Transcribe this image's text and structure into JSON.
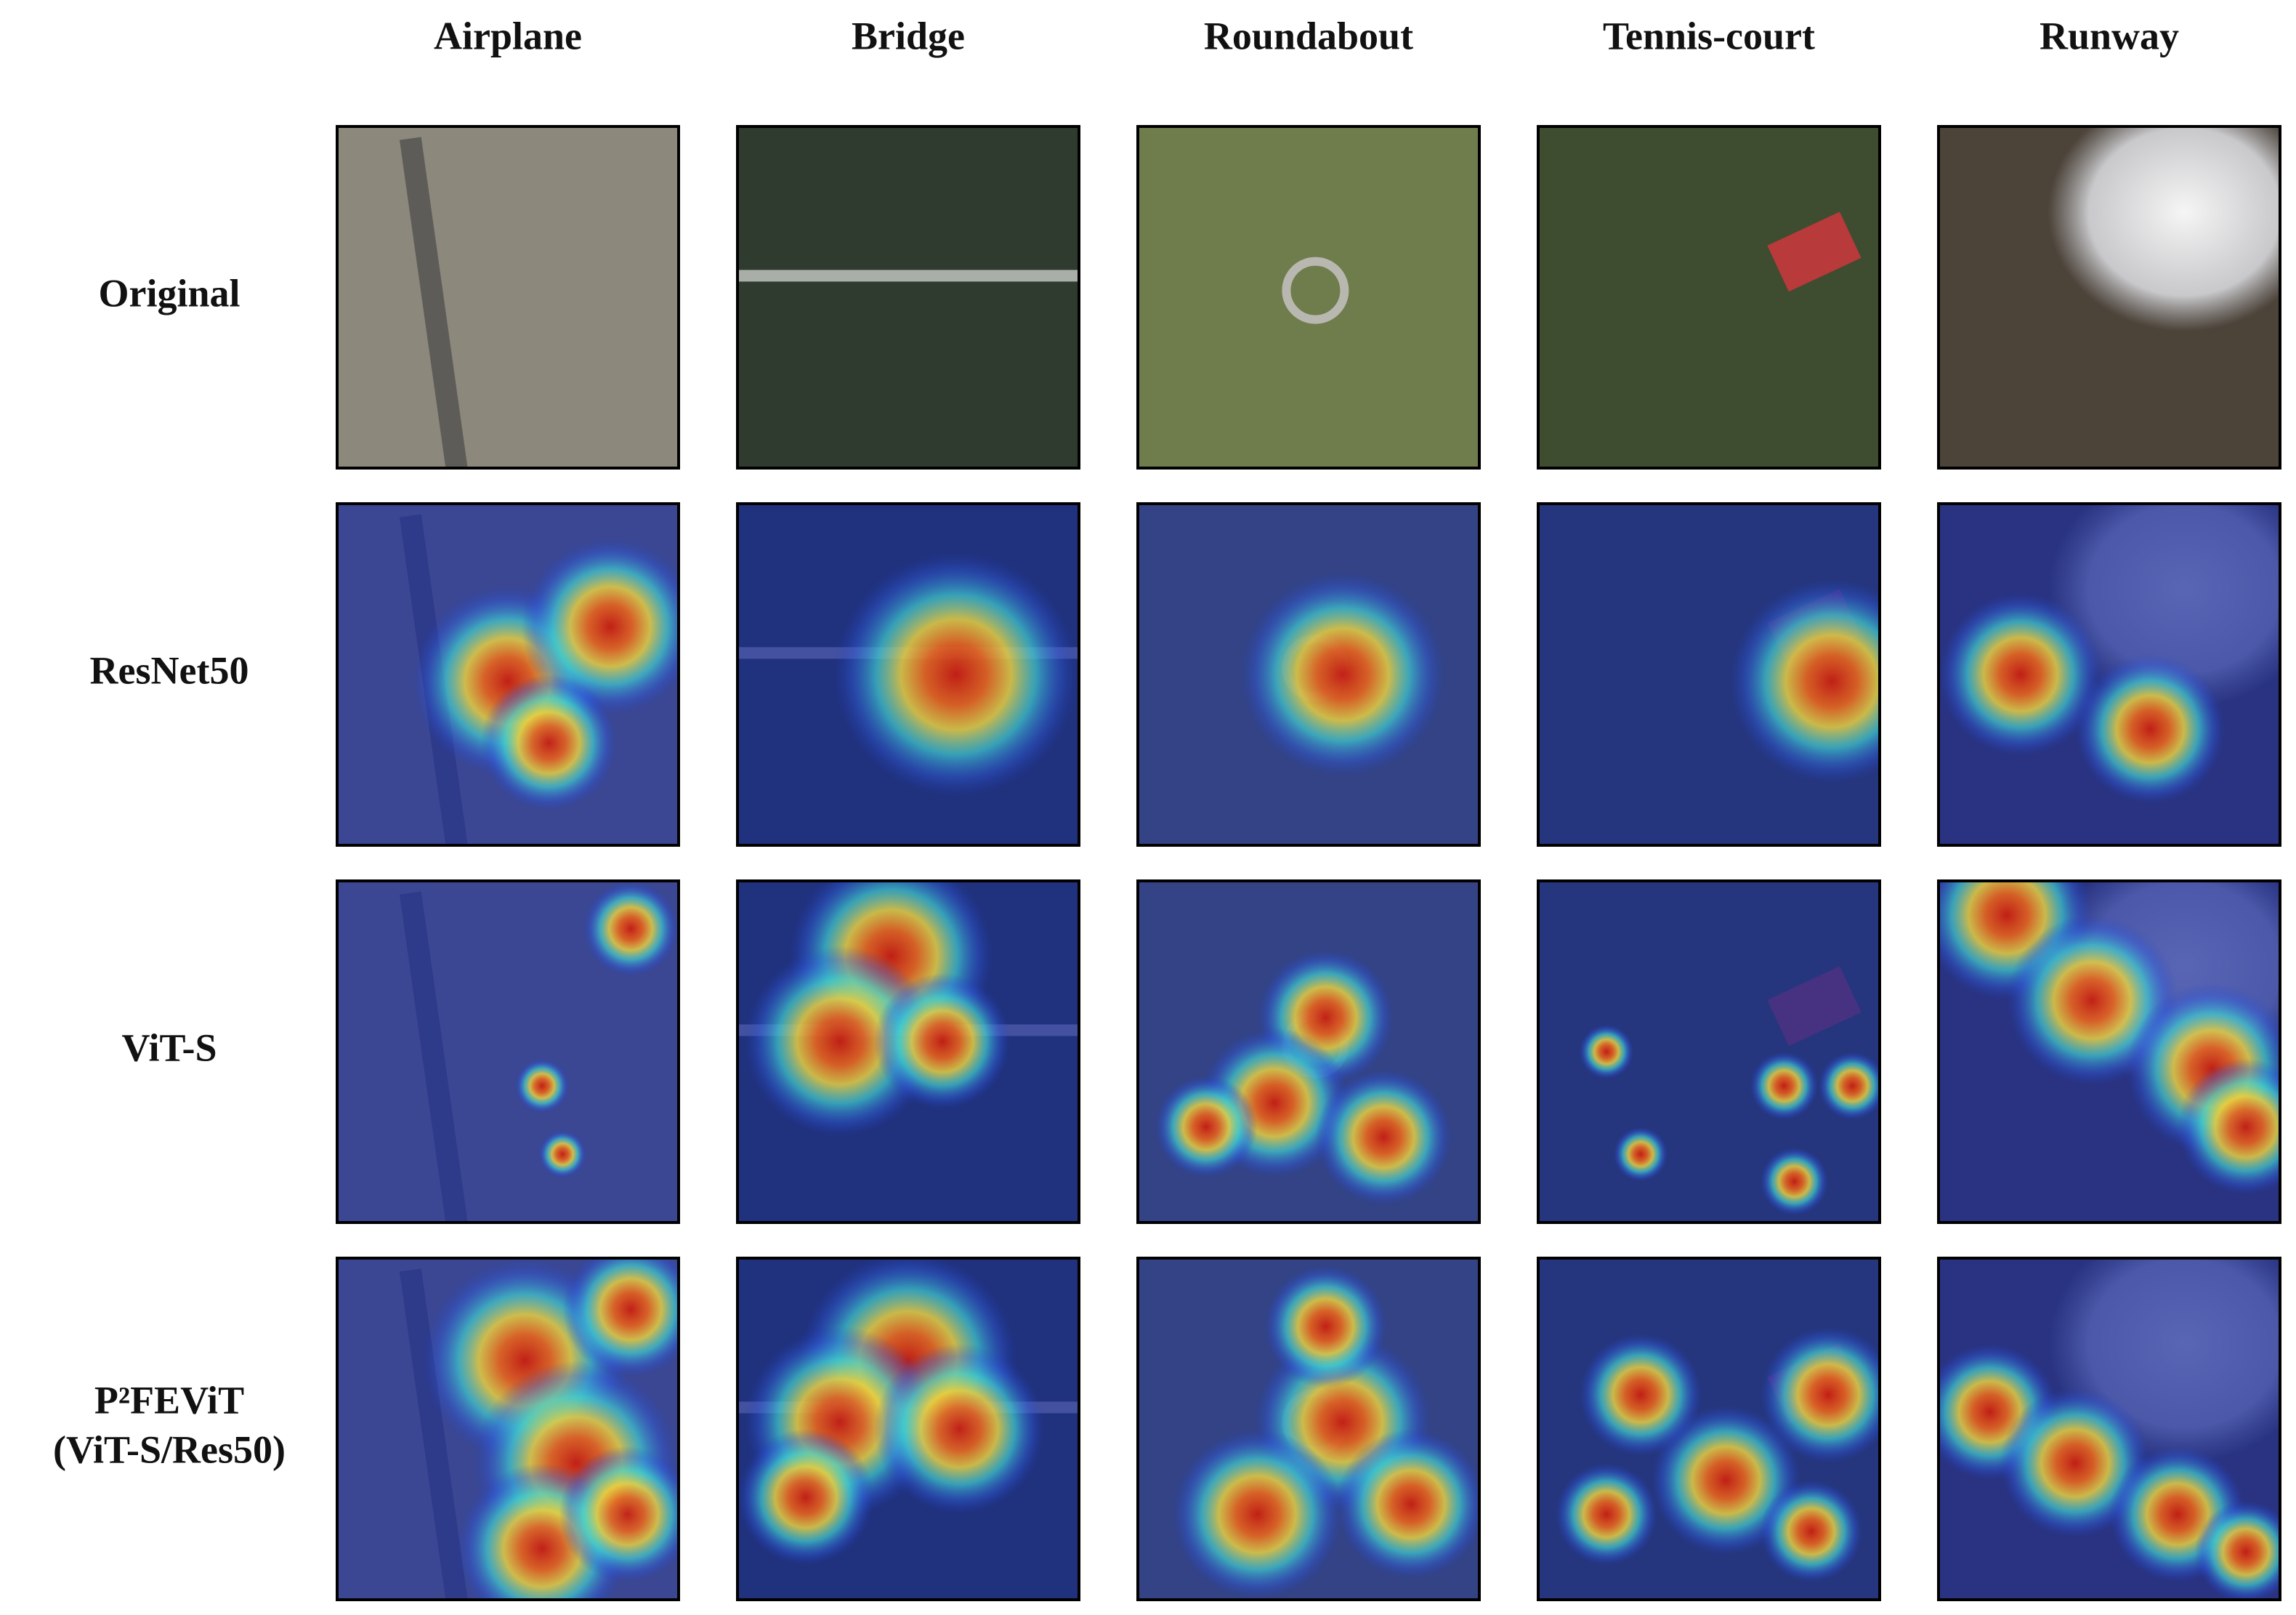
{
  "columns": [
    "Airplane",
    "Bridge",
    "Roundabout",
    "Tennis-court",
    "Runway"
  ],
  "rows": [
    {
      "lines": [
        "Original"
      ]
    },
    {
      "lines": [
        "ResNet50"
      ]
    },
    {
      "lines": [
        "ViT-S"
      ]
    },
    {
      "lines": [
        "P²FEViT",
        "(ViT-S/Res50)"
      ]
    }
  ]
}
